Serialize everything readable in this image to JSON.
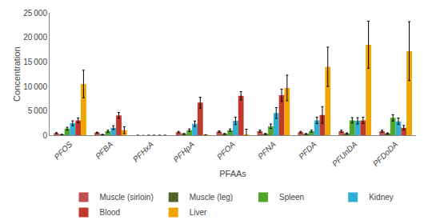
{
  "chart_data": {
    "type": "bar",
    "xlabel": "PFAAs",
    "ylabel": "Concentration",
    "categories": [
      "PFOS",
      "PFBA",
      "PFHxA",
      "PFHpA",
      "PFOA",
      "PFNA",
      "PFDA",
      "PFUnDA",
      "PFDoDA"
    ],
    "series": [
      {
        "name": "Muscle (sirloin)",
        "color": "#c0504d",
        "values": [
          500,
          600,
          50,
          700,
          800,
          900,
          700,
          900,
          900
        ],
        "errors": [
          100,
          100,
          5,
          150,
          150,
          200,
          150,
          200,
          200
        ]
      },
      {
        "name": "Muscle (leg)",
        "color": "#4f6228",
        "values": [
          200,
          200,
          20,
          350,
          350,
          350,
          350,
          450,
          450
        ],
        "errors": [
          50,
          50,
          5,
          70,
          70,
          80,
          70,
          90,
          90
        ]
      },
      {
        "name": "Spleen",
        "color": "#4ea72a",
        "values": [
          1400,
          900,
          50,
          1100,
          1100,
          1900,
          900,
          3100,
          3600
        ],
        "errors": [
          300,
          200,
          5,
          250,
          250,
          450,
          200,
          550,
          650
        ]
      },
      {
        "name": "Kidney",
        "color": "#31b0d5",
        "values": [
          2500,
          1600,
          50,
          2400,
          3000,
          4600,
          3100,
          3000,
          2900
        ],
        "errors": [
          500,
          400,
          5,
          550,
          750,
          1100,
          650,
          650,
          650
        ]
      },
      {
        "name": "Blood",
        "color": "#c0392b",
        "values": [
          3100,
          4100,
          50,
          6700,
          8100,
          8200,
          4200,
          3100,
          1600
        ],
        "errors": [
          500,
          600,
          5,
          1100,
          850,
          1250,
          1700,
          650,
          450
        ]
      },
      {
        "name": "Liver",
        "color": "#f0a500",
        "values": [
          10500,
          1100,
          50,
          100,
          200,
          9700,
          14000,
          18500,
          17200
        ],
        "errors": [
          2800,
          700,
          5,
          80,
          1100,
          2600,
          4000,
          4800,
          6000
        ]
      }
    ],
    "ylim": [
      0,
      25000
    ],
    "yticks": [
      0,
      {
        "value": 5000,
        "label": "5 000"
      },
      {
        "value": 10000,
        "label": "10 000"
      },
      {
        "value": 15000,
        "label": "15 000"
      },
      {
        "value": 20000,
        "label": "20 000"
      },
      {
        "value": 25000,
        "label": "25 000"
      }
    ],
    "grid": false,
    "legend": "bottom"
  }
}
